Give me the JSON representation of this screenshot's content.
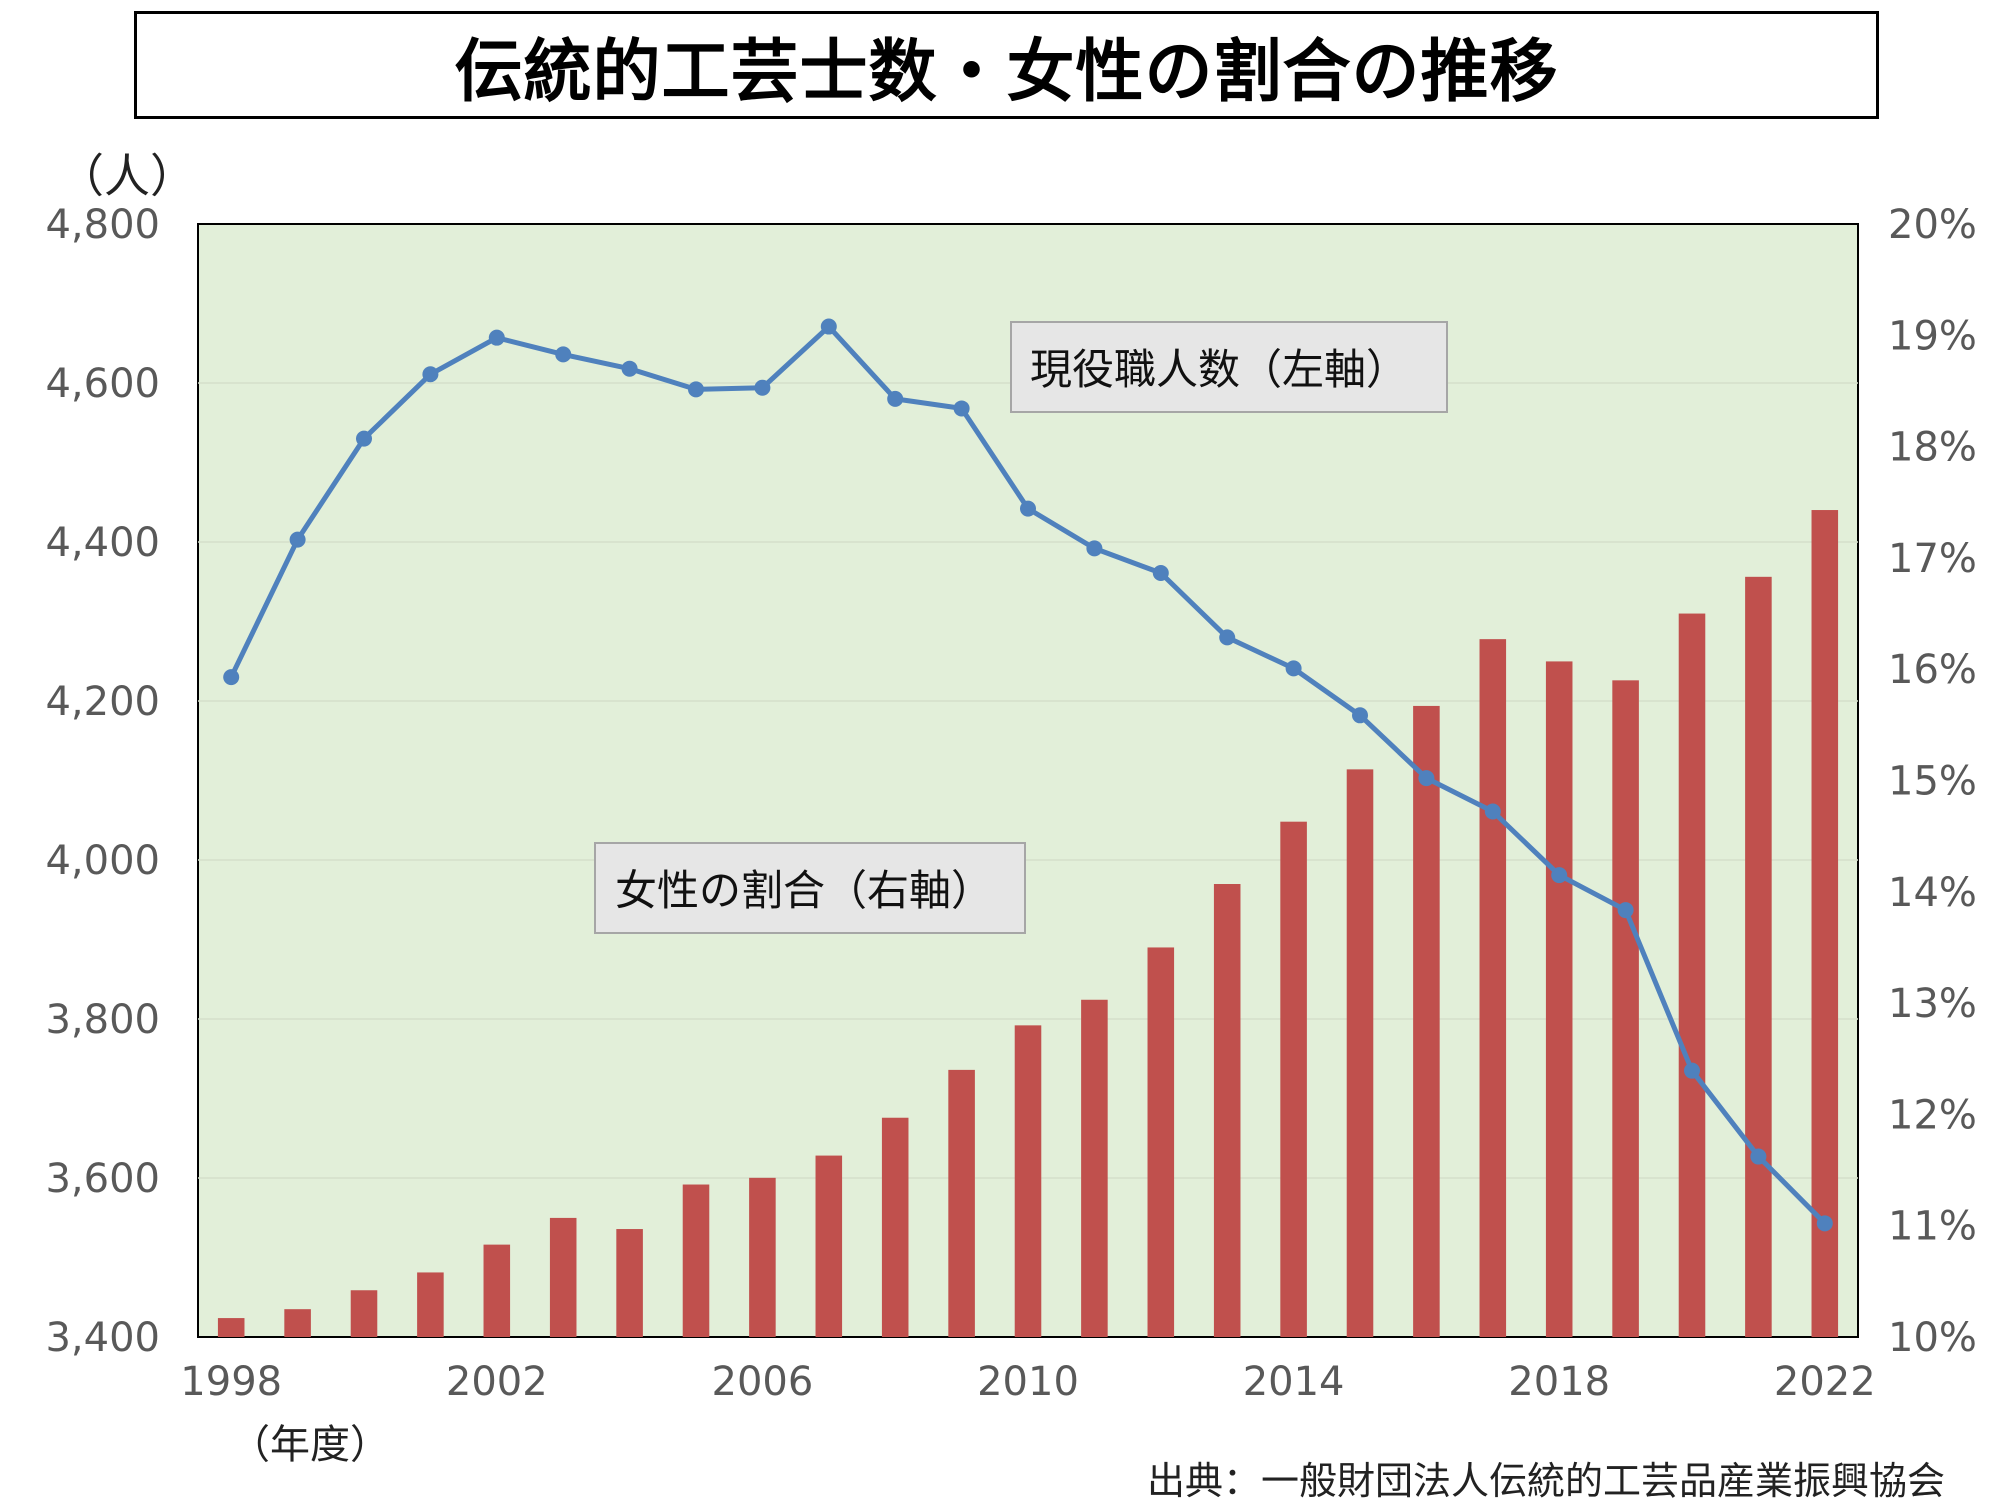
{
  "title": "伝統的工芸士数・女性の割合の推移",
  "unit_label": "（人）",
  "year_label": "（年度）",
  "source": "出典：一般財団法人伝統的工芸品産業振興協会",
  "colors": {
    "plot_bg": "#e2efd9",
    "line": "#4f81bd",
    "bar": "#c0504d"
  },
  "chart_data": {
    "type": "bar+line",
    "x": [
      1998,
      1999,
      2000,
      2001,
      2002,
      2003,
      2004,
      2005,
      2006,
      2007,
      2008,
      2009,
      2010,
      2011,
      2012,
      2013,
      2014,
      2015,
      2016,
      2017,
      2018,
      2019,
      2020,
      2021,
      2022
    ],
    "x_tick_labels": [
      "1998",
      "2002",
      "2006",
      "2010",
      "2014",
      "2018",
      "2022"
    ],
    "y_left": {
      "ylim": [
        3400,
        4800
      ],
      "ticks": [
        "3,400",
        "3,600",
        "3,800",
        "4,000",
        "4,200",
        "4,400",
        "4,600",
        "4,800"
      ]
    },
    "y_right": {
      "ylim": [
        10,
        20
      ],
      "ticks": [
        "10%",
        "11%",
        "12%",
        "13%",
        "14%",
        "15%",
        "16%",
        "17%",
        "18%",
        "19%",
        "20%"
      ]
    },
    "series": [
      {
        "name": "現役職人数（左軸）",
        "type": "line",
        "axis": "left",
        "values": [
          4230,
          4403,
          4530,
          4611,
          4657,
          4636,
          4618,
          4592,
          4594,
          4671,
          4580,
          4568,
          4442,
          4392,
          4361,
          4280,
          4241,
          4182,
          4103,
          4061,
          3981,
          3937,
          3735,
          3627,
          3543
        ]
      },
      {
        "name": "女性の割合（右軸）",
        "type": "bar",
        "axis": "right",
        "values": [
          10.17,
          10.25,
          10.42,
          10.58,
          10.83,
          11.07,
          10.97,
          11.37,
          11.43,
          11.63,
          11.97,
          12.4,
          12.8,
          13.03,
          13.5,
          14.07,
          14.63,
          15.1,
          15.67,
          16.27,
          16.07,
          15.9,
          16.5,
          16.83,
          17.43
        ]
      }
    ]
  }
}
